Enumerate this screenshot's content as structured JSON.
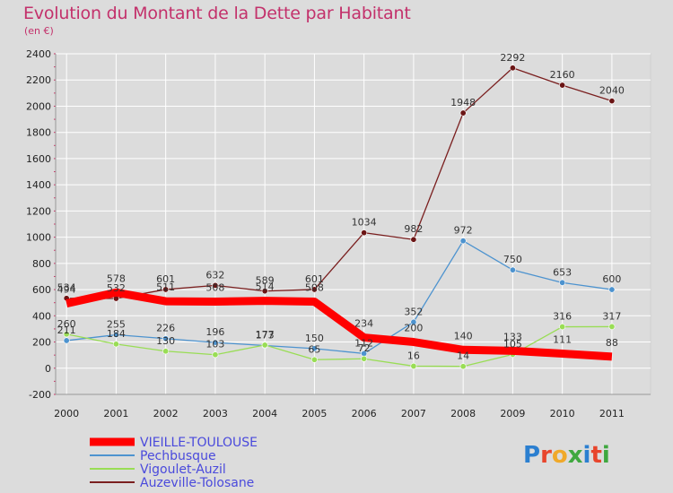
{
  "header": {
    "title": "Evolution du Montant de la Dette par Habitant",
    "subtitle": "(en €)"
  },
  "logo": {
    "text": "Proxiti"
  },
  "colors": {
    "background": "#dcdcdc",
    "title": "#c3316b",
    "legend_text": "#4a4adc"
  },
  "chart_data": {
    "type": "line",
    "title": "Evolution du Montant de la Dette par Habitant",
    "subtitle": "(en €)",
    "xlabel": "",
    "ylabel": "",
    "x": [
      "2000",
      "2001",
      "2002",
      "2003",
      "2004",
      "2005",
      "2006",
      "2007",
      "2008",
      "2009",
      "2010",
      "2011"
    ],
    "ylim": [
      -200,
      2400
    ],
    "yticks": [
      -200,
      0,
      200,
      400,
      600,
      800,
      1000,
      1200,
      1400,
      1600,
      1800,
      2000,
      2200,
      2400
    ],
    "grid": true,
    "legend_position": "bottom-left",
    "series": [
      {
        "name": "VIEILLE-TOULOUSE",
        "color": "#ff0000",
        "values": [
          494,
          578,
          511,
          508,
          514,
          508,
          234,
          200,
          140,
          133,
          111,
          88
        ]
      },
      {
        "name": "Pechbusque",
        "color": "#4d93cf",
        "values": [
          211,
          255,
          226,
          196,
          173,
          150,
          112,
          352,
          972,
          750,
          653,
          600
        ]
      },
      {
        "name": "Vigoulet-Auzil",
        "color": "#99dd55",
        "values": [
          260,
          184,
          130,
          103,
          177,
          65,
          72,
          16,
          14,
          105,
          316,
          317
        ]
      },
      {
        "name": "Auzeville-Tolosane",
        "color": "#7a1f1f",
        "values": [
          534,
          532,
          601,
          632,
          589,
          601,
          1034,
          982,
          1948,
          2292,
          2160,
          2040
        ]
      }
    ]
  }
}
